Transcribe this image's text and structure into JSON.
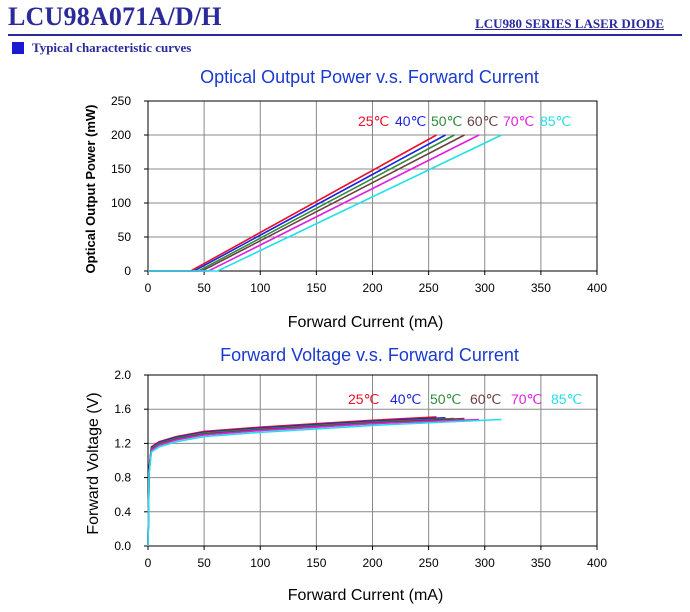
{
  "header": {
    "title": "LCU98A071A/D/H",
    "series": "LCU980 SERIES LASER DIODE",
    "section": "Typical characteristic curves"
  },
  "chart_data": [
    {
      "type": "line",
      "title": "Optical Output Power v.s. Forward Current",
      "xlabel": "Forward Current (mA)",
      "ylabel": "Optical Output Power (mW)",
      "xlim": [
        0,
        400
      ],
      "ylim": [
        0,
        250
      ],
      "xticks": [
        0,
        50,
        100,
        150,
        200,
        250,
        300,
        350,
        400
      ],
      "yticks": [
        0,
        50,
        100,
        150,
        200,
        250
      ],
      "grid": true,
      "series": [
        {
          "name": "25℃",
          "color": "#e8102a",
          "x": [
            0,
            38,
            257
          ],
          "y": [
            0,
            0,
            200
          ]
        },
        {
          "name": "40℃",
          "color": "#1a22e0",
          "x": [
            0,
            41,
            265
          ],
          "y": [
            0,
            0,
            200
          ]
        },
        {
          "name": "50℃",
          "color": "#2e8b3a",
          "x": [
            0,
            45,
            273
          ],
          "y": [
            0,
            0,
            200
          ]
        },
        {
          "name": "60℃",
          "color": "#6b4040",
          "x": [
            0,
            48,
            282
          ],
          "y": [
            0,
            0,
            200
          ]
        },
        {
          "name": "70℃",
          "color": "#e020e0",
          "x": [
            0,
            54,
            295
          ],
          "y": [
            0,
            0,
            200
          ]
        },
        {
          "name": "85℃",
          "color": "#22e0e8",
          "x": [
            0,
            62,
            315
          ],
          "y": [
            0,
            0,
            200
          ]
        }
      ]
    },
    {
      "type": "line",
      "title": "Forward Voltage v.s. Forward Current",
      "xlabel": "Forward Current (mA)",
      "ylabel": "Forward Voltage (V)",
      "xlim": [
        0,
        400
      ],
      "ylim": [
        0,
        2.0
      ],
      "xticks": [
        0,
        50,
        100,
        150,
        200,
        250,
        300,
        350,
        400
      ],
      "yticks": [
        "0.0",
        "0.4",
        "0.8",
        "1.2",
        "1.6",
        "2.0"
      ],
      "grid": true,
      "series": [
        {
          "name": "25℃",
          "color": "#e8102a",
          "x": [
            0,
            1,
            3,
            10,
            25,
            50,
            100,
            150,
            200,
            257
          ],
          "y": [
            0,
            0.9,
            1.16,
            1.22,
            1.28,
            1.34,
            1.39,
            1.43,
            1.47,
            1.51
          ]
        },
        {
          "name": "40℃",
          "color": "#1a22e0",
          "x": [
            0,
            1,
            3,
            10,
            25,
            50,
            100,
            150,
            200,
            265
          ],
          "y": [
            0,
            0.89,
            1.15,
            1.21,
            1.27,
            1.33,
            1.38,
            1.42,
            1.46,
            1.5
          ]
        },
        {
          "name": "50℃",
          "color": "#2e8b3a",
          "x": [
            0,
            1,
            3,
            10,
            25,
            50,
            100,
            150,
            200,
            273
          ],
          "y": [
            0,
            0.88,
            1.14,
            1.2,
            1.26,
            1.32,
            1.37,
            1.41,
            1.45,
            1.49
          ]
        },
        {
          "name": "60℃",
          "color": "#6b4040",
          "x": [
            0,
            1,
            3,
            10,
            25,
            50,
            100,
            150,
            200,
            282
          ],
          "y": [
            0,
            0.87,
            1.13,
            1.19,
            1.25,
            1.31,
            1.36,
            1.4,
            1.44,
            1.49
          ]
        },
        {
          "name": "70℃",
          "color": "#e020e0",
          "x": [
            0,
            1,
            3,
            10,
            25,
            50,
            100,
            150,
            200,
            295
          ],
          "y": [
            0,
            0.86,
            1.12,
            1.18,
            1.24,
            1.3,
            1.35,
            1.39,
            1.43,
            1.48
          ]
        },
        {
          "name": "85℃",
          "color": "#22e0e8",
          "x": [
            0,
            1,
            3,
            10,
            25,
            50,
            100,
            150,
            200,
            315
          ],
          "y": [
            0,
            0.85,
            1.1,
            1.16,
            1.22,
            1.28,
            1.33,
            1.37,
            1.41,
            1.48
          ]
        }
      ]
    }
  ]
}
